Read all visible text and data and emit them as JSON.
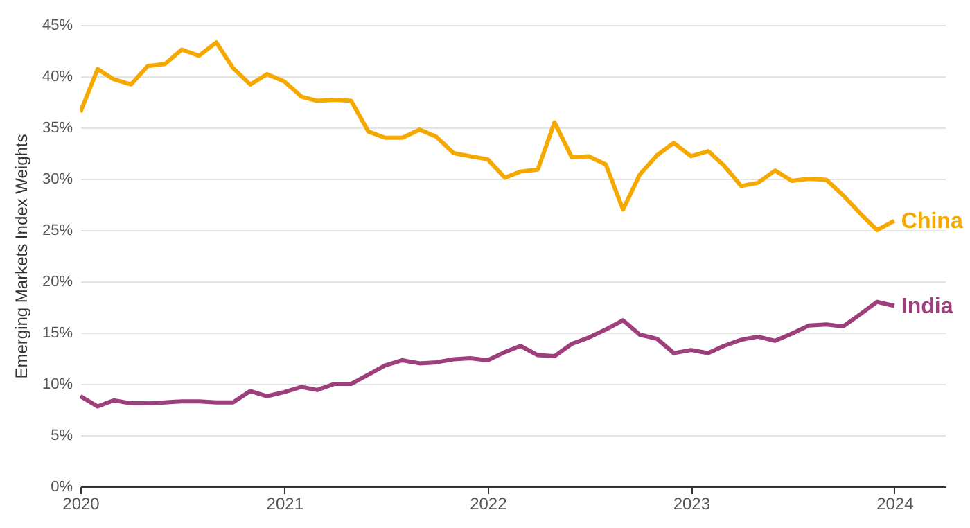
{
  "chart_data": {
    "type": "line",
    "ylabel": "Emerging Markets Index Weights",
    "x": [
      "2020-01",
      "2020-02",
      "2020-03",
      "2020-04",
      "2020-05",
      "2020-06",
      "2020-07",
      "2020-08",
      "2020-09",
      "2020-10",
      "2020-11",
      "2020-12",
      "2021-01",
      "2021-02",
      "2021-03",
      "2021-04",
      "2021-05",
      "2021-06",
      "2021-07",
      "2021-08",
      "2021-09",
      "2021-10",
      "2021-11",
      "2021-12",
      "2022-01",
      "2022-02",
      "2022-03",
      "2022-04",
      "2022-05",
      "2022-06",
      "2022-07",
      "2022-08",
      "2022-09",
      "2022-10",
      "2022-11",
      "2022-12",
      "2023-01",
      "2023-02",
      "2023-03",
      "2023-04",
      "2023-05",
      "2023-06",
      "2023-07",
      "2023-08",
      "2023-09",
      "2023-10",
      "2023-11",
      "2023-12",
      "2024-01"
    ],
    "series": [
      {
        "name": "China",
        "color": "#f5a800",
        "values": [
          36.5,
          40.7,
          39.7,
          39.2,
          41.0,
          41.2,
          42.6,
          42.0,
          43.3,
          40.8,
          39.2,
          40.2,
          39.5,
          38.0,
          37.6,
          37.7,
          37.6,
          34.6,
          34.0,
          34.0,
          34.8,
          34.1,
          32.5,
          32.2,
          31.9,
          30.1,
          30.7,
          30.9,
          35.5,
          32.1,
          32.2,
          31.4,
          27.0,
          30.4,
          32.3,
          33.5,
          32.2,
          32.7,
          31.3,
          29.3,
          29.6,
          30.8,
          29.8,
          30.0,
          29.9,
          28.4,
          26.6,
          25.0,
          25.9
        ]
      },
      {
        "name": "India",
        "color": "#9c3f7a",
        "values": [
          8.8,
          7.8,
          8.4,
          8.1,
          8.1,
          8.2,
          8.3,
          8.3,
          8.2,
          8.2,
          9.3,
          8.8,
          9.2,
          9.7,
          9.4,
          10.0,
          10.0,
          10.9,
          11.8,
          12.3,
          12.0,
          12.1,
          12.4,
          12.5,
          12.3,
          13.1,
          13.7,
          12.8,
          12.7,
          13.9,
          14.5,
          15.3,
          16.2,
          14.8,
          14.4,
          13.0,
          13.3,
          13.0,
          13.7,
          14.3,
          14.6,
          14.2,
          14.9,
          15.7,
          15.8,
          15.6,
          16.8,
          18.0,
          17.6
        ]
      }
    ],
    "xlim": [
      "2020-01",
      "2024-04"
    ],
    "xticks": [
      {
        "value": "2020-01",
        "label": "2020"
      },
      {
        "value": "2021-01",
        "label": "2021"
      },
      {
        "value": "2022-01",
        "label": "2022"
      },
      {
        "value": "2023-01",
        "label": "2023"
      },
      {
        "value": "2024-01",
        "label": "2024"
      }
    ],
    "ylim": [
      0,
      45
    ],
    "yticks": [
      {
        "value": 0,
        "label": "0%"
      },
      {
        "value": 5,
        "label": "5%"
      },
      {
        "value": 10,
        "label": "10%"
      },
      {
        "value": 15,
        "label": "15%"
      },
      {
        "value": 20,
        "label": "20%"
      },
      {
        "value": 25,
        "label": "25%"
      },
      {
        "value": 30,
        "label": "30%"
      },
      {
        "value": 35,
        "label": "35%"
      },
      {
        "value": 40,
        "label": "40%"
      },
      {
        "value": 45,
        "label": "45%"
      }
    ],
    "grid": "y"
  }
}
